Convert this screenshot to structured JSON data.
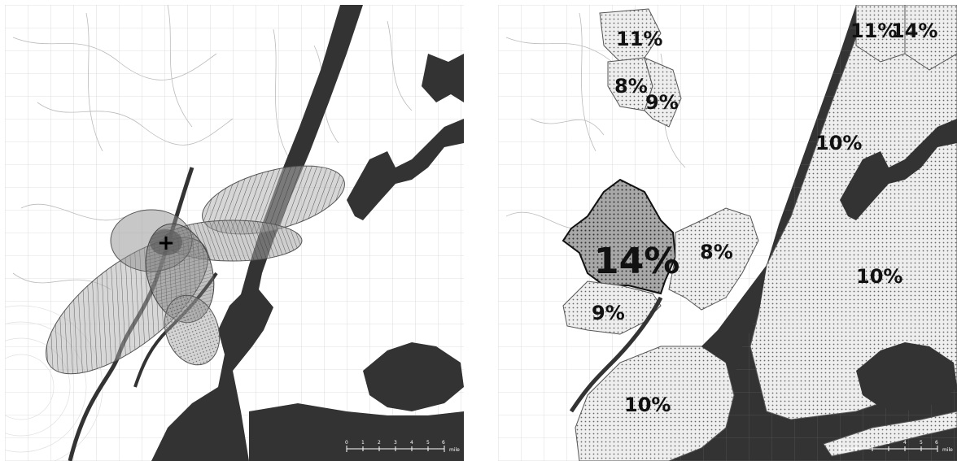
{
  "colors": {
    "water": "#333333",
    "grid": "#cccccc",
    "land": "#ffffff",
    "ellipse_fill": "#9a9a9a",
    "ellipse_dark": "#555555",
    "district_fill": "#e6e6e6",
    "district_highlight": "#9c9c9c"
  },
  "left_map": {
    "marker_symbol": "+"
  },
  "right_map": {
    "labels": {
      "top_left": "11%",
      "upper_left_a": "8%",
      "upper_left_b": "9%",
      "top_right_a": "11%",
      "top_right_b": "14%",
      "upper_right": "10%",
      "center_left_big": "14%",
      "center": "8%",
      "right": "10%",
      "lower_left": "9%",
      "bottom_left": "10%"
    }
  },
  "scale_bar": {
    "ticks": [
      "0",
      "1",
      "2",
      "3",
      "4",
      "5",
      "6"
    ],
    "unit": "mile"
  }
}
